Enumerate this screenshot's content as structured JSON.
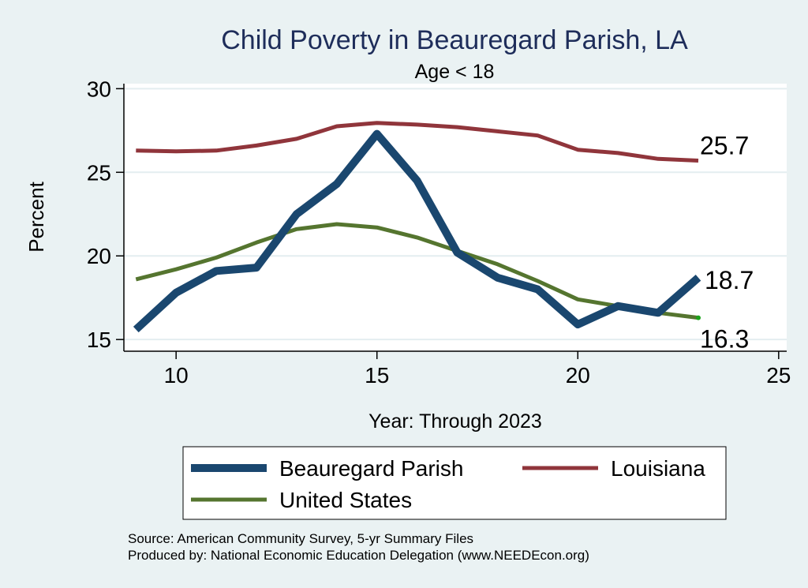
{
  "chart_data": {
    "type": "line",
    "title": "Child Poverty in Beauregard Parish, LA",
    "subtitle": "Age < 18",
    "xlabel": "Year: Through 2023",
    "ylabel": "Percent",
    "xlim": [
      8.7,
      25.2
    ],
    "ylim": [
      14.3,
      30.3
    ],
    "xticks": [
      10,
      15,
      20,
      25
    ],
    "yticks": [
      15,
      20,
      25,
      30
    ],
    "grid": true,
    "x": [
      9,
      10,
      11,
      12,
      13,
      14,
      15,
      16,
      17,
      18,
      19,
      20,
      21,
      22,
      23
    ],
    "series": [
      {
        "name": "Beauregard Parish",
        "color": "#1a476f",
        "values": [
          15.6,
          17.8,
          19.1,
          19.3,
          22.5,
          24.3,
          27.3,
          24.5,
          20.2,
          18.7,
          18.0,
          15.9,
          17.0,
          16.6,
          18.7
        ],
        "end_label": "18.7"
      },
      {
        "name": "Louisiana",
        "color": "#90353b",
        "values": [
          26.3,
          26.25,
          26.3,
          26.6,
          27.0,
          27.75,
          27.95,
          27.85,
          27.7,
          27.45,
          27.2,
          26.35,
          26.15,
          25.8,
          25.7
        ],
        "end_label": "25.7"
      },
      {
        "name": "United States",
        "color": "#55752f",
        "values": [
          18.6,
          19.2,
          19.9,
          20.8,
          21.6,
          21.9,
          21.7,
          21.1,
          20.3,
          19.5,
          18.5,
          17.4,
          17.0,
          16.6,
          16.3
        ],
        "end_label": "16.3"
      }
    ],
    "legend": {
      "placement": "bottom",
      "entries": [
        "Beauregard Parish",
        "Louisiana",
        "United States"
      ]
    },
    "notes": [
      "Source: American Community Survey, 5-yr Summary Files",
      "Produced by: National Economic Education Delegation (www.NEEDEcon.org)"
    ]
  }
}
